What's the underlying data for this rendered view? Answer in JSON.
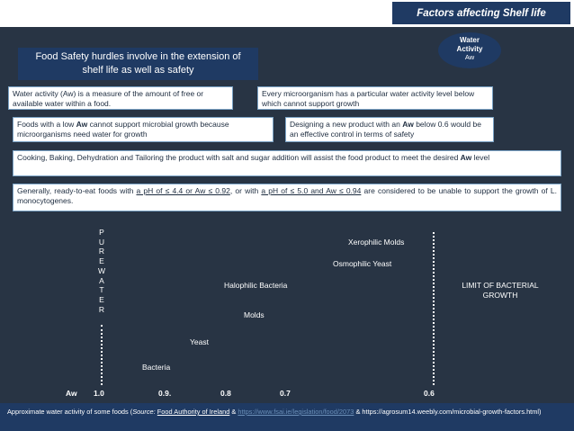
{
  "header": {
    "title": "Factors affecting Shelf life"
  },
  "title_box": {
    "line1": "Food Safety hurdles involve in the extension of",
    "line2": "shelf life  as well as safety"
  },
  "badge": {
    "line1": "Water",
    "line2": "Activity",
    "line3": "Aw"
  },
  "boxes": {
    "aw_def": "Water activity (Aw) is a measure of the amount of free or available water within a food.",
    "micro_def": "Every microorganism has a particular water activity level below which cannot support growth",
    "low_aw": {
      "pre": "Foods with a low ",
      "bold": "Aw",
      "post": " cannot support microbial growth because microorganisms need water for growth"
    },
    "design": {
      "pre": "Designing a new product with an ",
      "bold": "Aw",
      "post": " below 0.6 would be an effective control in terms of safety"
    },
    "cooking": {
      "pre": "Cooking, Baking, Dehydration and Tailoring the product with salt and sugar addition will assist the food product to meet the desired ",
      "bold": "Aw",
      "post": " level"
    },
    "rte": {
      "t1": "Generally, ready-to-eat foods with ",
      "u1": "a pH of ≤ 4.4 or Aw ≤ 0.92",
      "t2": ", or with ",
      "u2": "a pH of ≤ 5.0 and Aw ≤ 0.94",
      "t3": " are considered to be unable to support the growth of L. monocytogenes."
    }
  },
  "diagram": {
    "pure_water": [
      "P",
      "U",
      "R",
      "E",
      "W",
      "A",
      "T",
      "E",
      "R"
    ],
    "labels": {
      "xerophilic": "Xerophilic Molds",
      "osmophilic": "Osmophilic Yeast",
      "halophilic": "Halophilic Bacteria",
      "molds": "Molds",
      "yeast": "Yeast",
      "bacteria": "Bacteria",
      "limit": "LIMIT OF BACTERIAL GROWTH"
    },
    "axis": {
      "name": "Aw",
      "ticks": [
        "1.0",
        "0.9.",
        "0.8",
        "0.7",
        "0.6"
      ]
    }
  },
  "footer": {
    "pre": "Approximate water activity of some foods (",
    "source_label": "Source:",
    "space": " ",
    "link1": "Food Authority of Ireland",
    "amp1": " & ",
    "link2": "https://www.fsai.ie/legislation/food/2073",
    "amp2": " & https://agrosum14.weebly.com/microbial-growth-factors.html)"
  }
}
